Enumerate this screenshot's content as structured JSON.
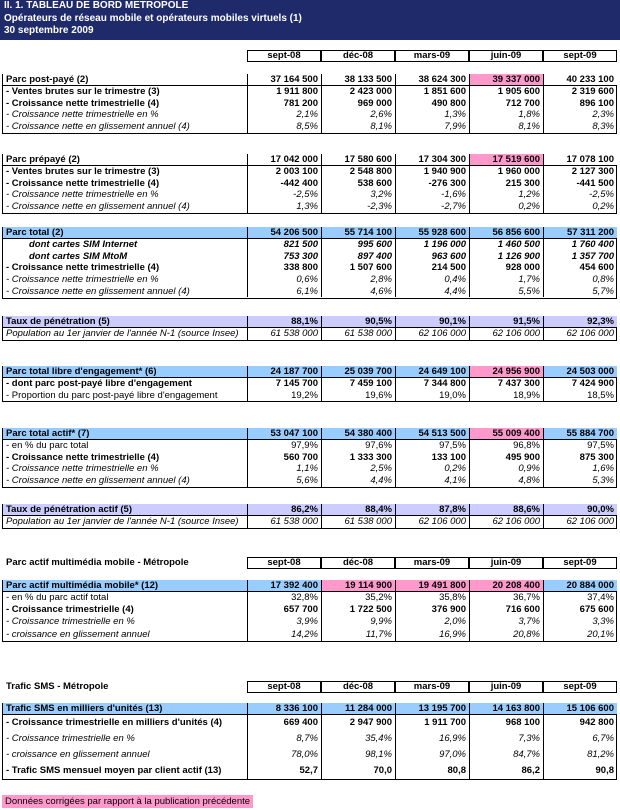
{
  "header": {
    "title": [
      "II. 1.  TABLEAU DE BORD METROPOLE",
      "Opérateurs de réseau mobile et opérateurs mobiles virtuels (1)",
      "30 septembre  2009"
    ]
  },
  "column_headers": [
    "sept-08",
    "déc-08",
    "mars-09",
    "juin-09",
    "sept-09"
  ],
  "tables": [
    {
      "sections": [
        {
          "label": "Parc post-payé (2)",
          "fill": "#ffffff",
          "pink": [
            3
          ],
          "values": [
            "37 164 500",
            "38 133 500",
            "38 624 300",
            "39 337 000",
            "40 233 100"
          ],
          "rows": [
            {
              "label": "- Ventes brutes sur le trimestre (3)",
              "style": "bold",
              "values": [
                "1 911 800",
                "2 423 000",
                "1 851 600",
                "1 905 600",
                "2 319 600"
              ]
            },
            {
              "label": "- Croissance nette trimestrielle (4)",
              "style": "bold",
              "values": [
                "781 200",
                "969 000",
                "490 800",
                "712 700",
                "896 100"
              ]
            },
            {
              "label": "- Croissance nette trimestrielle en %",
              "style": "italic",
              "values": [
                "2,1%",
                "2,6%",
                "1,3%",
                "1,8%",
                "2,3%"
              ]
            },
            {
              "label": "- Croissance nette en glissement annuel (4)",
              "style": "italic",
              "values": [
                "8,5%",
                "8,1%",
                "7,9%",
                "8,1%",
                "8,3%"
              ]
            }
          ]
        },
        {
          "label": "Parc prépayé (2)",
          "fill": "#ffffff",
          "pink": [
            3
          ],
          "values": [
            "17 042 000",
            "17 580 600",
            "17 304 300",
            "17 519 600",
            "17 078 100"
          ],
          "rows": [
            {
              "label": "- Ventes brutes sur le trimestre (3)",
              "style": "bold",
              "values": [
                "2 003 100",
                "2 548 800",
                "1 940 900",
                "1 960 000",
                "2 127 300"
              ]
            },
            {
              "label": "- Croissance nette trimestrielle (4)",
              "style": "bold",
              "values": [
                "-442 400",
                "538 600",
                "-276 300",
                "215 300",
                "-441 500"
              ]
            },
            {
              "label": "- Croissance nette trimestrielle en %",
              "style": "italic",
              "values": [
                "-2,5%",
                "3,2%",
                "-1,6%",
                "1,2%",
                "-2,5%"
              ]
            },
            {
              "label": "- Croissance nette en glissement annuel (4)",
              "style": "italic",
              "values": [
                "1,3%",
                "-2,3%",
                "-2,7%",
                "0,2%",
                "0,2%"
              ]
            }
          ]
        },
        {
          "label": "Parc total (2)",
          "fill": "#99ccff",
          "pink": [],
          "values": [
            "54 206 500",
            "55 714 100",
            "55 928 600",
            "56 856 600",
            "57 311 200"
          ],
          "rows": [
            {
              "label": "dont cartes SIM Internet",
              "style": "bolditalic",
              "values": [
                "821 500",
                "995 600",
                "1 196 000",
                "1 460 500",
                "1 760 400"
              ]
            },
            {
              "label": "dont cartes SIM MtoM",
              "style": "bolditalic",
              "values": [
                "753 300",
                "897 400",
                "963 600",
                "1 126 900",
                "1 357 700"
              ]
            },
            {
              "label": "- Croissance nette trimestrielle (4)",
              "style": "bold",
              "values": [
                "338 800",
                "1 507 600",
                "214 500",
                "928 000",
                "454 600"
              ]
            },
            {
              "label": "- Croissance nette trimestrielle en %",
              "style": "italic",
              "values": [
                "0,6%",
                "2,8%",
                "0,4%",
                "1,7%",
                "0,8%"
              ]
            },
            {
              "label": "- Croissance nette en glissement annuel (4)",
              "style": "italic",
              "values": [
                "6,1%",
                "4,6%",
                "4,4%",
                "5,5%",
                "5,7%"
              ]
            }
          ]
        },
        {
          "label": "Taux de pénétration (5)",
          "fill": "#ccccff",
          "pink": [],
          "values": [
            "88,1%",
            "90,5%",
            "90,1%",
            "91,5%",
            "92,3%"
          ],
          "rows": [
            {
              "label": "Population au 1er janvier de l'année N-1 (source Insee)",
              "style": "italic",
              "values": [
                "61 538 000",
                "61 538 000",
                "62 106 000",
                "62 106 000",
                "62 106 000"
              ]
            }
          ]
        },
        {
          "label": "Parc total libre d'engagement* (6)",
          "fill": "#99ccff",
          "pink": [
            3
          ],
          "values": [
            "24 187 700",
            "25 039 700",
            "24 649 100",
            "24 956 900",
            "24 503 000"
          ],
          "rows": [
            {
              "label": "- dont parc post-payé libre d'engagement",
              "style": "bold",
              "values": [
                "7 145 700",
                "7 459 100",
                "7 344 800",
                "7 437 300",
                "7 424 900"
              ]
            },
            {
              "label": "- Proportion du parc post-payé libre d'engagement",
              "style": "normal",
              "values": [
                "19,2%",
                "19,6%",
                "19,0%",
                "18,9%",
                "18,5%"
              ]
            }
          ]
        },
        {
          "label": "Parc total actif* (7)",
          "fill": "#99ccff",
          "pink": [
            3
          ],
          "values": [
            "53 047 100",
            "54 380 400",
            "54 513 500",
            "55 009 400",
            "55 884 700"
          ],
          "rows": [
            {
              "label": "- en % du parc total",
              "style": "normal",
              "values": [
                "97,9%",
                "97,6%",
                "97,5%",
                "96,8%",
                "97,5%"
              ]
            },
            {
              "label": "- Croissance nette trimestrielle (4)",
              "style": "bold",
              "values": [
                "560 700",
                "1 333 300",
                "133 100",
                "495 900",
                "875 300"
              ]
            },
            {
              "label": "- Croissance nette trimestrielle en %",
              "style": "italic",
              "values": [
                "1,1%",
                "2,5%",
                "0,2%",
                "0,9%",
                "1,6%"
              ]
            },
            {
              "label": "- Croissance nette en glissement annuel (4)",
              "style": "italic",
              "values": [
                "5,6%",
                "4,4%",
                "4,1%",
                "4,8%",
                "5,3%"
              ]
            }
          ]
        },
        {
          "label": "Taux de pénétration actif (5)",
          "fill": "#ccccff",
          "pink": [],
          "values": [
            "86,2%",
            "88,4%",
            "87,8%",
            "88,6%",
            "90,0%"
          ],
          "rows": [
            {
              "label": "Population au 1er janvier de l'année N-1 (source Insee)",
              "style": "italic",
              "values": [
                "61 538 000",
                "61 538 000",
                "62 106 000",
                "62 106 000",
                "62 106 000"
              ]
            }
          ]
        }
      ]
    },
    {
      "heading": "Parc actif multimédia mobile - Métropole",
      "sections": [
        {
          "label": "Parc actif multimédia mobile* (12)",
          "fill": "#99ccff",
          "pink": [
            1,
            2,
            3
          ],
          "values": [
            "17 392 400",
            "19 114 900",
            "19 491 800",
            "20 208 400",
            "20 884 000"
          ],
          "rows": [
            {
              "label": "- en % du parc actif total",
              "style": "normal",
              "values": [
                "32,8%",
                "35,2%",
                "35,8%",
                "36,7%",
                "37,4%"
              ]
            },
            {
              "label": "- Croissance trimestrielle (4)",
              "style": "bold",
              "values": [
                "657 700",
                "1 722 500",
                "376 900",
                "716 600",
                "675 600"
              ]
            },
            {
              "label": "- Croissance trimestrielle en %",
              "style": "italic",
              "values": [
                "3,9%",
                "9,9%",
                "2,0%",
                "3,7%",
                "3,3%"
              ]
            },
            {
              "label": "- croissance en glissement annuel",
              "style": "italic",
              "values": [
                "14,2%",
                "11,7%",
                "16,9%",
                "20,8%",
                "20,1%"
              ]
            }
          ]
        }
      ]
    },
    {
      "heading": "Trafic SMS - Métropole",
      "sections": [
        {
          "label": "Trafic SMS en milliers d'unités (13)",
          "fill": "#99ccff",
          "pink": [],
          "values": [
            "8 336 100",
            "11 284 000",
            "13 195 700",
            "14 163 800",
            "15 106 600"
          ],
          "rows": [
            {
              "label": "- Croissance trimestrielle en milliers d'unités (4)",
              "style": "bold",
              "values": [
                "669 400",
                "2 947 900",
                "1 911 700",
                "968 100",
                "942 800"
              ]
            },
            {
              "label": "- Croissance trimestrielle en %",
              "style": "italic",
              "values": [
                "8,7%",
                "35,4%",
                "16,9%",
                "7,3%",
                "6,7%"
              ]
            },
            {
              "label": "- croissance en glissement annuel",
              "style": "italic",
              "values": [
                "78,0%",
                "98,1%",
                "97,0%",
                "84,7%",
                "81,2%"
              ]
            },
            {
              "label": "- Trafic SMS mensuel moyen par client actif (13)",
              "style": "bold",
              "values": [
                "52,7",
                "70,0",
                "80,8",
                "86,2",
                "90,8"
              ]
            }
          ]
        }
      ]
    }
  ],
  "footer": {
    "note": "Données corrigées par rapport à la publication précédente"
  }
}
